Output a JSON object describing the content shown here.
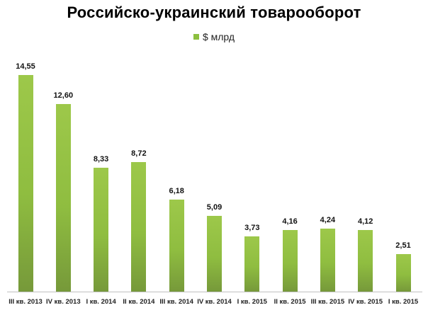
{
  "chart_data": {
    "type": "bar",
    "title": "Российско-украинский товарооборот",
    "legend": [
      "$ млрд"
    ],
    "legend_position": "top",
    "xlabel": "",
    "ylabel": "",
    "grid": false,
    "y_axis_visible": false,
    "ylim": [
      0,
      16
    ],
    "categories": [
      "III кв. 2013",
      "IV кв. 2013",
      "I кв. 2014",
      "II кв. 2014",
      "III кв. 2014",
      "IV кв. 2014",
      "I кв. 2015",
      "II кв. 2015",
      "III кв. 2015",
      "IV кв. 2015",
      "I кв. 2015"
    ],
    "series": [
      {
        "name": "$ млрд",
        "color": "#8cbf3f",
        "values": [
          14.55,
          12.6,
          8.33,
          8.72,
          6.18,
          5.09,
          3.73,
          4.16,
          4.24,
          4.12,
          2.51
        ],
        "labels": [
          "14,55",
          "12,60",
          "8,33",
          "8,72",
          "6,18",
          "5,09",
          "3,73",
          "4,16",
          "4,24",
          "4,12",
          "2,51"
        ]
      }
    ]
  }
}
